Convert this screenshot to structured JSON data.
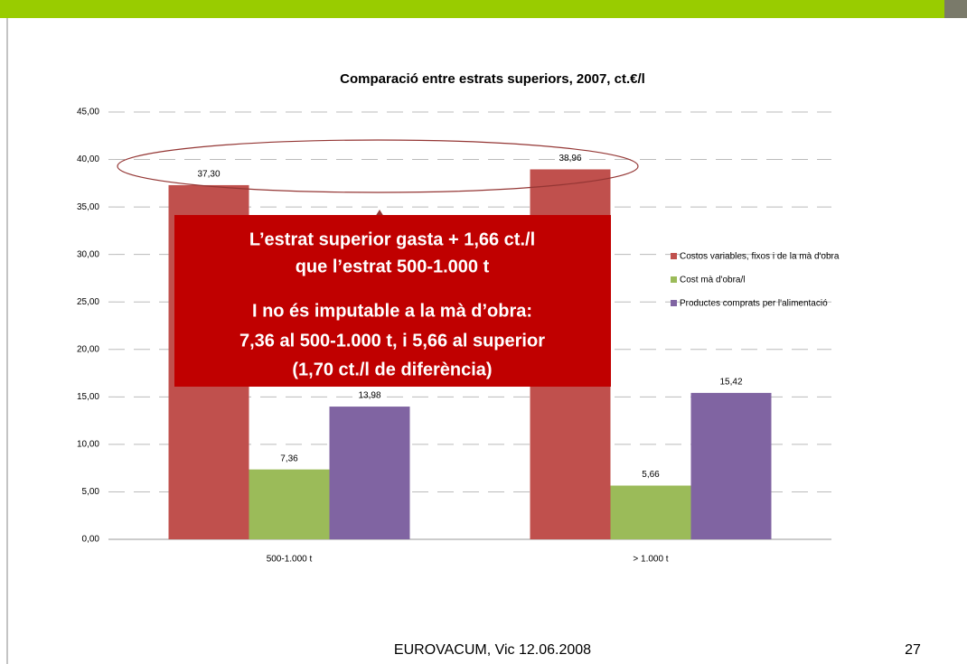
{
  "chart_data": {
    "type": "bar",
    "title": "Comparació entre estrats superiors, 2007, ct.€/l",
    "categories": [
      "500-1.000 t",
      "> 1.000 t"
    ],
    "series": [
      {
        "name": "Costos variables, fixos i de la mà d'obra",
        "color": "#c0504d",
        "values": [
          37.3,
          38.96
        ],
        "value_labels": [
          "37,30",
          "38,96"
        ]
      },
      {
        "name": "Cost mà d'obra/l",
        "color": "#9bbb59",
        "values": [
          7.36,
          5.66
        ],
        "value_labels": [
          "7,36",
          "5,66"
        ]
      },
      {
        "name": "Productes comprats per l'alimentació",
        "color": "#8064a2",
        "values": [
          13.98,
          15.42
        ],
        "value_labels": [
          "13,98",
          "15,42"
        ]
      }
    ],
    "ylim": [
      0,
      45
    ],
    "yticks": [
      {
        "value": 0,
        "label": "0,00"
      },
      {
        "value": 5,
        "label": "5,00"
      },
      {
        "value": 10,
        "label": "10,00"
      },
      {
        "value": 15,
        "label": "15,00"
      },
      {
        "value": 20,
        "label": "20,00"
      },
      {
        "value": 25,
        "label": "25,00"
      },
      {
        "value": 30,
        "label": "30,00"
      },
      {
        "value": 35,
        "label": "35,00"
      },
      {
        "value": 40,
        "label": "40,00"
      },
      {
        "value": 45,
        "label": "45,00"
      }
    ],
    "grid": true,
    "legend": "right",
    "annotations": [
      "L’estrat superior gasta + 1,66 ct./l",
      "que l’estrat 500-1.000 t",
      "I no és imputable a la mà d’obra:",
      "7,36 al 500-1.000 t, i 5,66 al superior",
      "(1,70 ct./l de diferència)"
    ]
  },
  "footer": {
    "text": "EUROVACUM, Vic 12.06.2008",
    "page": "27"
  }
}
